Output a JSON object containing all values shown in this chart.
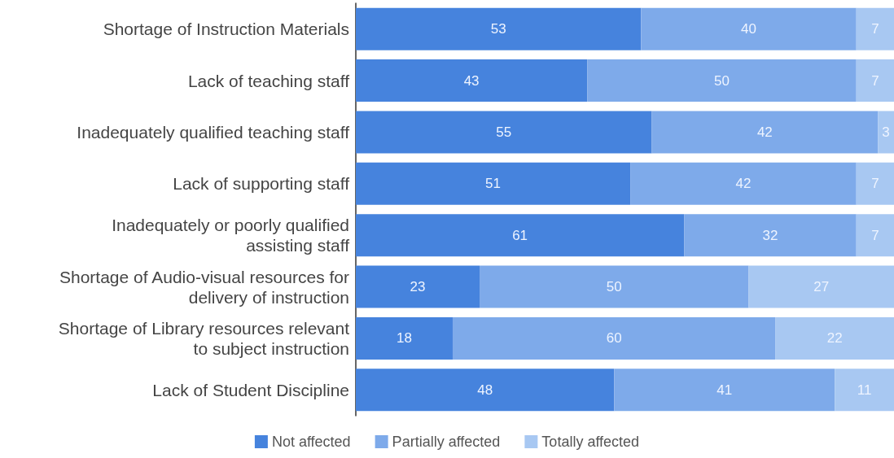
{
  "chart_data": {
    "type": "bar",
    "orientation": "horizontal",
    "stacked": true,
    "data_labels": true,
    "legend": "bottom",
    "categories": [
      "Shortage of Instruction Materials",
      "Lack of teaching staff",
      "Inadequately qualified teaching staff",
      "Lack of supporting staff",
      "Inadequately or poorly qualified\nassisting staff",
      "Shortage of Audio-visual resources for\ndelivery of instruction",
      "Shortage of Library resources relevant\nto subject instruction",
      "Lack of Student Discipline"
    ],
    "series": [
      {
        "name": "Not affected",
        "color": "#4683dd",
        "values": [
          53,
          43,
          55,
          51,
          61,
          23,
          18,
          48
        ]
      },
      {
        "name": "Partially affected",
        "color": "#7eaaea",
        "values": [
          40,
          50,
          42,
          42,
          32,
          50,
          60,
          41
        ]
      },
      {
        "name": "Totally affected",
        "color": "#a8c8f2",
        "values": [
          7,
          7,
          3,
          7,
          7,
          27,
          22,
          11
        ]
      }
    ]
  }
}
